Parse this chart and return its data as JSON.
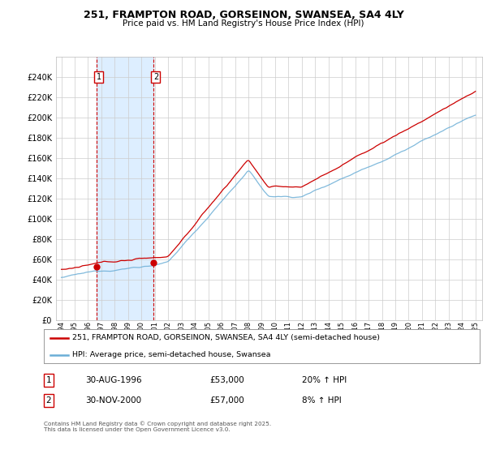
{
  "title": "251, FRAMPTON ROAD, GORSEINON, SWANSEA, SA4 4LY",
  "subtitle": "Price paid vs. HM Land Registry's House Price Index (HPI)",
  "ylabel_ticks": [
    "£0",
    "£20K",
    "£40K",
    "£60K",
    "£80K",
    "£100K",
    "£120K",
    "£140K",
    "£160K",
    "£180K",
    "£200K",
    "£220K",
    "£240K"
  ],
  "ytick_values": [
    0,
    20000,
    40000,
    60000,
    80000,
    100000,
    120000,
    140000,
    160000,
    180000,
    200000,
    220000,
    240000
  ],
  "ylim": [
    0,
    260000
  ],
  "sale1_year": 1996.667,
  "sale1_price": 53000,
  "sale2_year": 2000.917,
  "sale2_price": 57000,
  "line1_color": "#cc0000",
  "line2_color": "#6baed6",
  "shade_color": "#ddeeff",
  "vline_color": "#cc0000",
  "legend_line1": "251, FRAMPTON ROAD, GORSEINON, SWANSEA, SA4 4LY (semi-detached house)",
  "legend_line2": "HPI: Average price, semi-detached house, Swansea",
  "table_row1_num": "1",
  "table_row1_date": "30-AUG-1996",
  "table_row1_price": "£53,000",
  "table_row1_hpi": "20% ↑ HPI",
  "table_row2_num": "2",
  "table_row2_date": "30-NOV-2000",
  "table_row2_price": "£57,000",
  "table_row2_hpi": "8% ↑ HPI",
  "footnote": "Contains HM Land Registry data © Crown copyright and database right 2025.\nThis data is licensed under the Open Government Licence v3.0.",
  "background_color": "#ffffff",
  "grid_color": "#cccccc",
  "x_start_year": 1994,
  "x_end_year": 2025
}
